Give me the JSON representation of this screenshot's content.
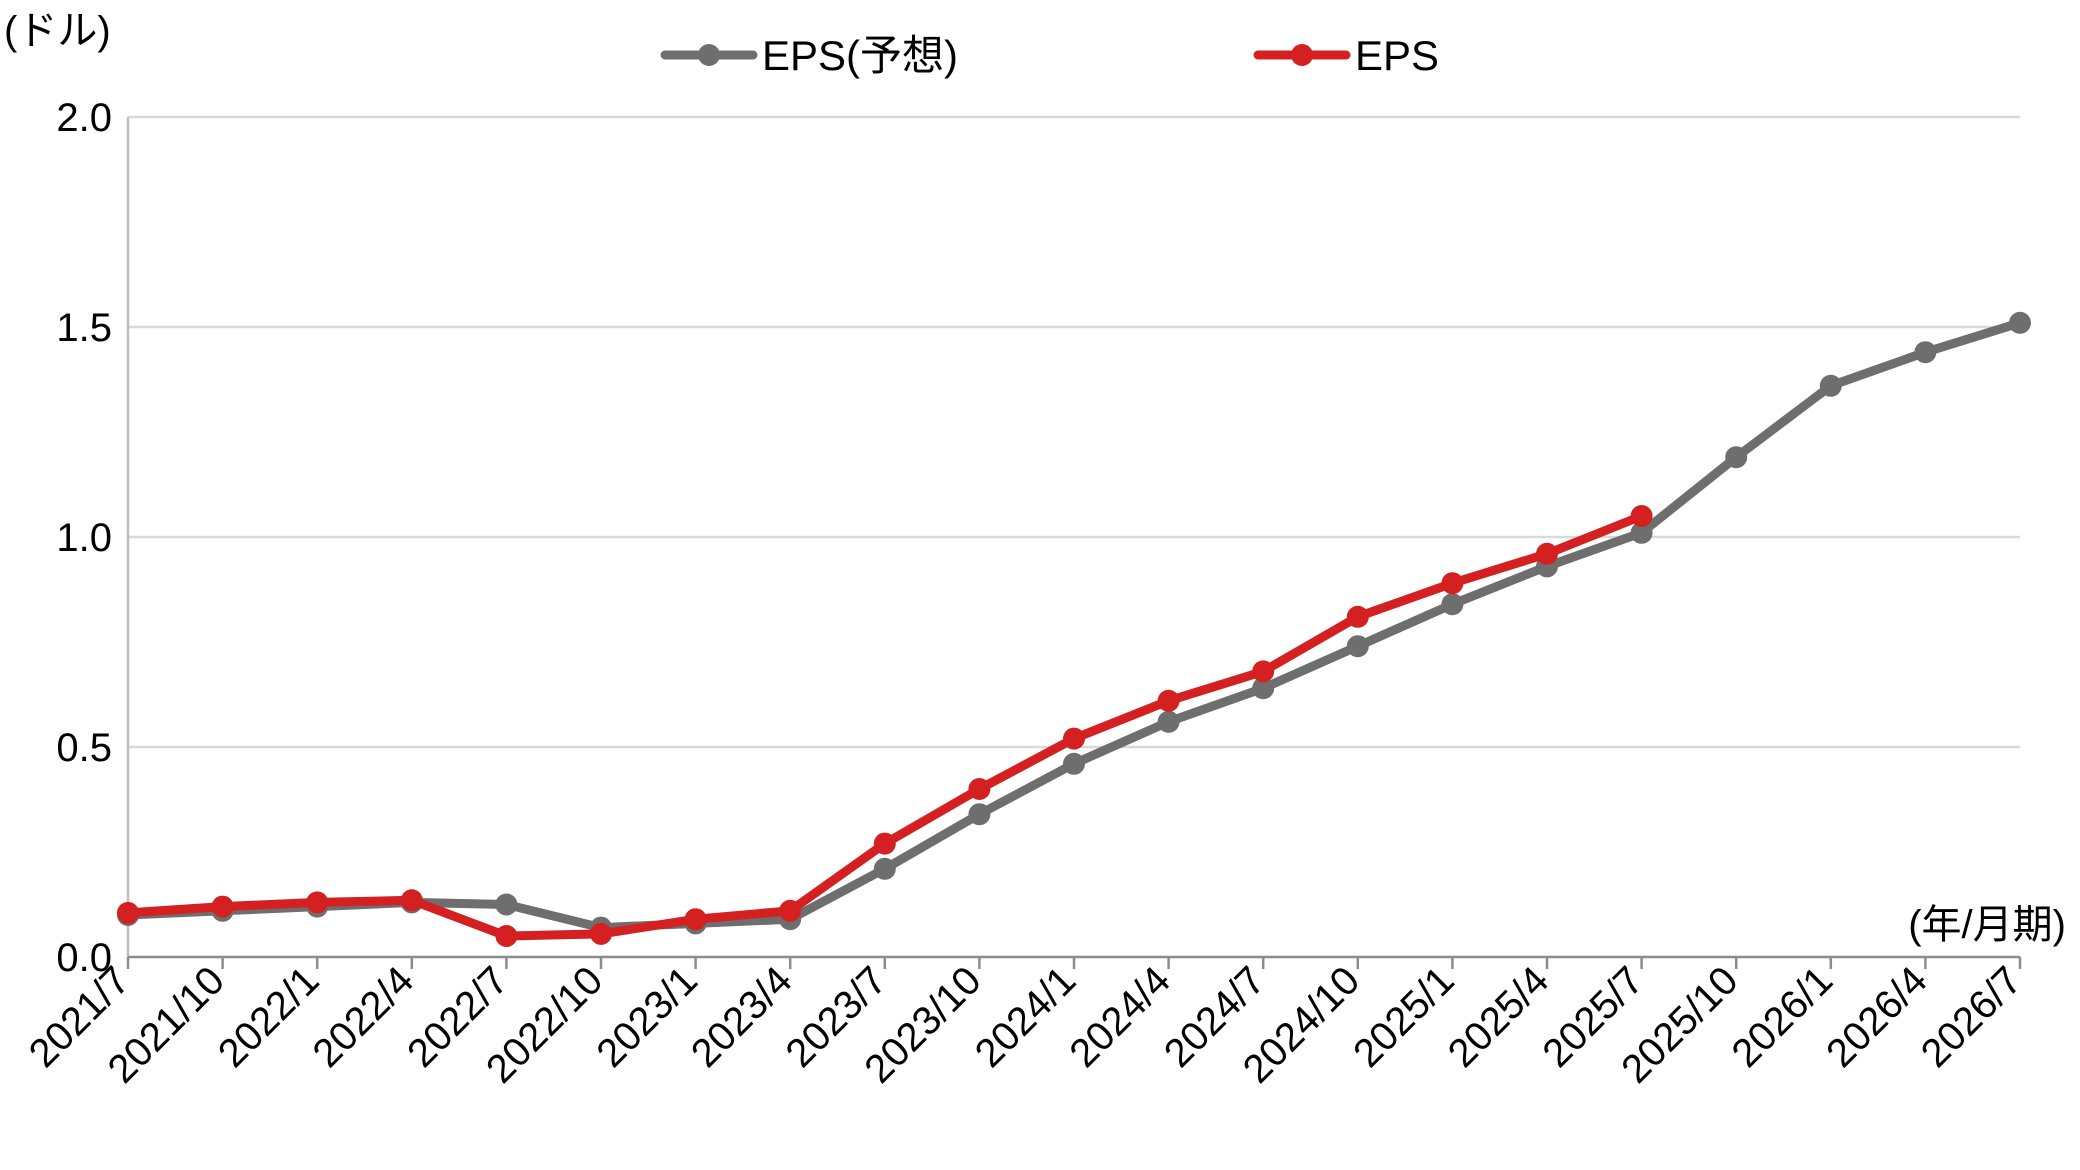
{
  "chart_data": {
    "type": "line",
    "title": "",
    "ylabel": "(ドル)",
    "xlabel": "(年/月期)",
    "ylim": [
      0,
      2.0
    ],
    "yticks": [
      0,
      0.5,
      1.0,
      1.5,
      2.0
    ],
    "ytick_labels": [
      "0.0",
      "0.5",
      "1.0",
      "1.5",
      "2.0"
    ],
    "grid": true,
    "legend_position": "top-center",
    "categories": [
      "2021/7",
      "2021/10",
      "2022/1",
      "2022/4",
      "2022/7",
      "2022/10",
      "2023/1",
      "2023/4",
      "2023/7",
      "2023/10",
      "2024/1",
      "2024/4",
      "2024/7",
      "2024/10",
      "2025/1",
      "2025/4",
      "2025/7",
      "2025/10",
      "2026/1",
      "2026/4",
      "2026/7"
    ],
    "series": [
      {
        "name": "EPS(予想)",
        "color": "#6e6e6e",
        "values": [
          0.1,
          0.11,
          0.12,
          0.13,
          0.125,
          0.07,
          0.08,
          0.09,
          0.21,
          0.34,
          0.46,
          0.56,
          0.64,
          0.74,
          0.84,
          0.93,
          1.01,
          1.19,
          1.36,
          1.44,
          1.51
        ]
      },
      {
        "name": "EPS",
        "color": "#d42020",
        "values": [
          0.105,
          0.12,
          0.13,
          0.135,
          0.05,
          0.055,
          0.09,
          0.11,
          0.27,
          0.4,
          0.52,
          0.61,
          0.68,
          0.81,
          0.89,
          0.96,
          1.05,
          null,
          null,
          null,
          null
        ]
      }
    ]
  }
}
